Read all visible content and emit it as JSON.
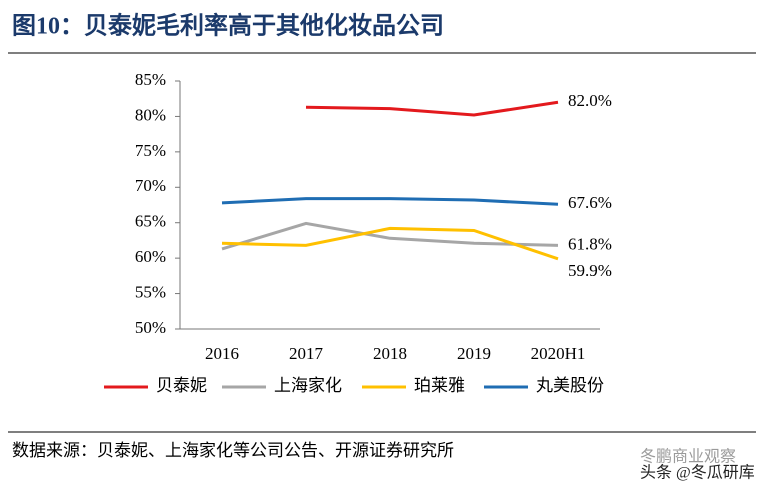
{
  "chart_data": {
    "type": "line",
    "title": "图10：贝泰妮毛利率高于其他化妆品公司",
    "source": "数据来源：贝泰妮、上海家化等公司公告、开源证券研究所",
    "watermarks": [
      "冬鹏商业观察",
      "头条 @冬瓜研库"
    ],
    "categories": [
      "2016",
      "2017",
      "2018",
      "2019",
      "2020H1"
    ],
    "ylim": [
      50,
      85
    ],
    "yticks": [
      {
        "value": 50,
        "label": "50%"
      },
      {
        "value": 55,
        "label": "55%"
      },
      {
        "value": 60,
        "label": "60%"
      },
      {
        "value": 65,
        "label": "65%"
      },
      {
        "value": 70,
        "label": "70%"
      },
      {
        "value": 75,
        "label": "75%"
      },
      {
        "value": 80,
        "label": "80%"
      },
      {
        "value": 85,
        "label": "85%"
      }
    ],
    "series": [
      {
        "name": "贝泰妮",
        "color": "#e3191d",
        "values": [
          null,
          81.3,
          81.1,
          80.2,
          82.0
        ],
        "value_labels": [
          null,
          null,
          null,
          null,
          "82.0%"
        ]
      },
      {
        "name": "上海家化",
        "color": "#a6a6a6",
        "values": [
          61.3,
          64.9,
          62.8,
          62.1,
          61.8
        ],
        "value_labels": [
          null,
          null,
          null,
          null,
          "61.8%"
        ]
      },
      {
        "name": "珀莱雅",
        "color": "#ffc000",
        "values": [
          62.1,
          61.8,
          64.2,
          63.9,
          59.9
        ],
        "value_labels": [
          null,
          null,
          null,
          null,
          "59.9%"
        ]
      },
      {
        "name": "丸美股份",
        "color": "#1f6db3",
        "values": [
          67.8,
          68.4,
          68.4,
          68.2,
          67.6
        ],
        "value_labels": [
          null,
          null,
          null,
          null,
          "67.6%"
        ]
      }
    ]
  }
}
